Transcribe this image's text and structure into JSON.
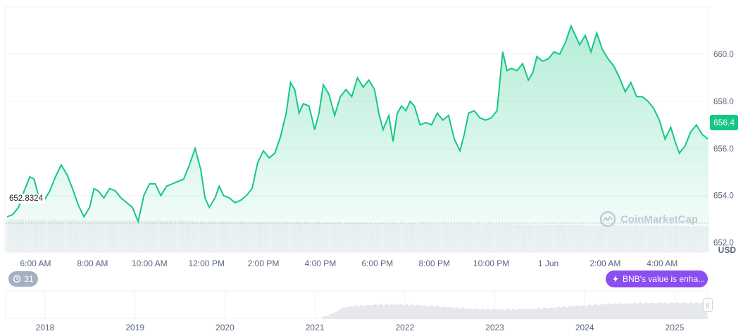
{
  "chart_data": {
    "type": "area",
    "currency_label": "USD",
    "current_price_label": "656.4",
    "low_price_label": "652.8324",
    "ylim": [
      651.6,
      662.0
    ],
    "y_ticks": [
      "652.0",
      "654.0",
      "656.0",
      "658.0",
      "660.0"
    ],
    "x_ticks": [
      "6:00 AM",
      "8:00 AM",
      "10:00 AM",
      "12:00 PM",
      "2:00 PM",
      "4:00 PM",
      "6:00 PM",
      "8:00 PM",
      "10:00 PM",
      "1 Jun",
      "2:00 AM",
      "4:00 AM"
    ],
    "x_tick_positions_hours": [
      1,
      3,
      5,
      7,
      9,
      11,
      13,
      15,
      17,
      19,
      21,
      23
    ],
    "x_range_hours": [
      -0.05,
      24.6
    ],
    "series": [
      {
        "color": "#16c784",
        "points": [
          [
            0.0,
            653.1
          ],
          [
            0.2,
            653.2
          ],
          [
            0.4,
            653.5
          ],
          [
            0.6,
            654.2
          ],
          [
            0.8,
            654.8
          ],
          [
            0.95,
            654.7
          ],
          [
            1.1,
            654.0
          ],
          [
            1.3,
            653.8
          ],
          [
            1.5,
            654.2
          ],
          [
            1.7,
            654.8
          ],
          [
            1.9,
            655.3
          ],
          [
            2.1,
            654.9
          ],
          [
            2.3,
            654.3
          ],
          [
            2.5,
            653.6
          ],
          [
            2.7,
            653.1
          ],
          [
            2.9,
            653.5
          ],
          [
            3.05,
            654.3
          ],
          [
            3.2,
            654.2
          ],
          [
            3.4,
            653.9
          ],
          [
            3.6,
            654.3
          ],
          [
            3.8,
            654.2
          ],
          [
            4.0,
            653.9
          ],
          [
            4.2,
            653.7
          ],
          [
            4.4,
            653.5
          ],
          [
            4.6,
            652.9
          ],
          [
            4.8,
            654.0
          ],
          [
            5.0,
            654.5
          ],
          [
            5.2,
            654.5
          ],
          [
            5.4,
            654.0
          ],
          [
            5.6,
            654.4
          ],
          [
            5.8,
            654.5
          ],
          [
            6.0,
            654.6
          ],
          [
            6.2,
            654.7
          ],
          [
            6.4,
            655.3
          ],
          [
            6.6,
            656.0
          ],
          [
            6.8,
            655.1
          ],
          [
            6.95,
            653.9
          ],
          [
            7.1,
            653.5
          ],
          [
            7.3,
            653.9
          ],
          [
            7.45,
            654.4
          ],
          [
            7.6,
            654.0
          ],
          [
            7.8,
            653.9
          ],
          [
            8.0,
            653.7
          ],
          [
            8.2,
            653.8
          ],
          [
            8.4,
            654.0
          ],
          [
            8.6,
            654.3
          ],
          [
            8.8,
            655.4
          ],
          [
            9.0,
            655.9
          ],
          [
            9.2,
            655.6
          ],
          [
            9.4,
            655.8
          ],
          [
            9.6,
            656.5
          ],
          [
            9.8,
            657.5
          ],
          [
            9.95,
            658.8
          ],
          [
            10.1,
            658.5
          ],
          [
            10.25,
            657.5
          ],
          [
            10.4,
            657.9
          ],
          [
            10.6,
            657.8
          ],
          [
            10.8,
            656.8
          ],
          [
            10.95,
            657.5
          ],
          [
            11.1,
            658.7
          ],
          [
            11.3,
            658.3
          ],
          [
            11.5,
            657.4
          ],
          [
            11.7,
            658.2
          ],
          [
            11.9,
            658.5
          ],
          [
            12.1,
            658.2
          ],
          [
            12.3,
            659.0
          ],
          [
            12.5,
            658.6
          ],
          [
            12.7,
            658.9
          ],
          [
            12.9,
            658.5
          ],
          [
            13.05,
            657.5
          ],
          [
            13.2,
            656.8
          ],
          [
            13.4,
            657.4
          ],
          [
            13.55,
            656.3
          ],
          [
            13.7,
            657.5
          ],
          [
            13.85,
            657.8
          ],
          [
            14.0,
            657.6
          ],
          [
            14.15,
            658.0
          ],
          [
            14.3,
            657.8
          ],
          [
            14.5,
            657.0
          ],
          [
            14.7,
            657.1
          ],
          [
            14.9,
            657.0
          ],
          [
            15.1,
            657.5
          ],
          [
            15.3,
            657.2
          ],
          [
            15.5,
            657.4
          ],
          [
            15.7,
            656.4
          ],
          [
            15.9,
            655.9
          ],
          [
            16.05,
            656.6
          ],
          [
            16.2,
            657.5
          ],
          [
            16.4,
            657.6
          ],
          [
            16.6,
            657.3
          ],
          [
            16.8,
            657.2
          ],
          [
            17.0,
            657.3
          ],
          [
            17.2,
            657.6
          ],
          [
            17.4,
            660.1
          ],
          [
            17.55,
            659.3
          ],
          [
            17.7,
            659.4
          ],
          [
            17.9,
            659.3
          ],
          [
            18.1,
            659.6
          ],
          [
            18.3,
            658.9
          ],
          [
            18.45,
            659.2
          ],
          [
            18.6,
            659.9
          ],
          [
            18.8,
            659.7
          ],
          [
            19.0,
            659.8
          ],
          [
            19.2,
            660.1
          ],
          [
            19.4,
            660.0
          ],
          [
            19.6,
            660.5
          ],
          [
            19.8,
            661.2
          ],
          [
            19.95,
            660.8
          ],
          [
            20.1,
            660.4
          ],
          [
            20.3,
            660.8
          ],
          [
            20.5,
            660.1
          ],
          [
            20.7,
            660.9
          ],
          [
            20.9,
            660.2
          ],
          [
            21.1,
            659.8
          ],
          [
            21.3,
            659.5
          ],
          [
            21.5,
            659.0
          ],
          [
            21.7,
            658.4
          ],
          [
            21.9,
            658.8
          ],
          [
            22.1,
            658.2
          ],
          [
            22.3,
            658.2
          ],
          [
            22.5,
            658.0
          ],
          [
            22.7,
            657.7
          ],
          [
            22.9,
            657.2
          ],
          [
            23.1,
            656.4
          ],
          [
            23.3,
            656.9
          ],
          [
            23.45,
            656.3
          ],
          [
            23.6,
            655.8
          ],
          [
            23.8,
            656.1
          ],
          [
            24.0,
            656.7
          ],
          [
            24.2,
            657.0
          ],
          [
            24.4,
            656.6
          ],
          [
            24.6,
            656.4
          ]
        ]
      }
    ],
    "x_axis_years": [
      "2018",
      "2019",
      "2020",
      "2021",
      "2022",
      "2023",
      "2024",
      "2025"
    ],
    "events_count": "31",
    "news_label": "BNB's value is enha...",
    "watermark": "CoinMarketCap"
  }
}
